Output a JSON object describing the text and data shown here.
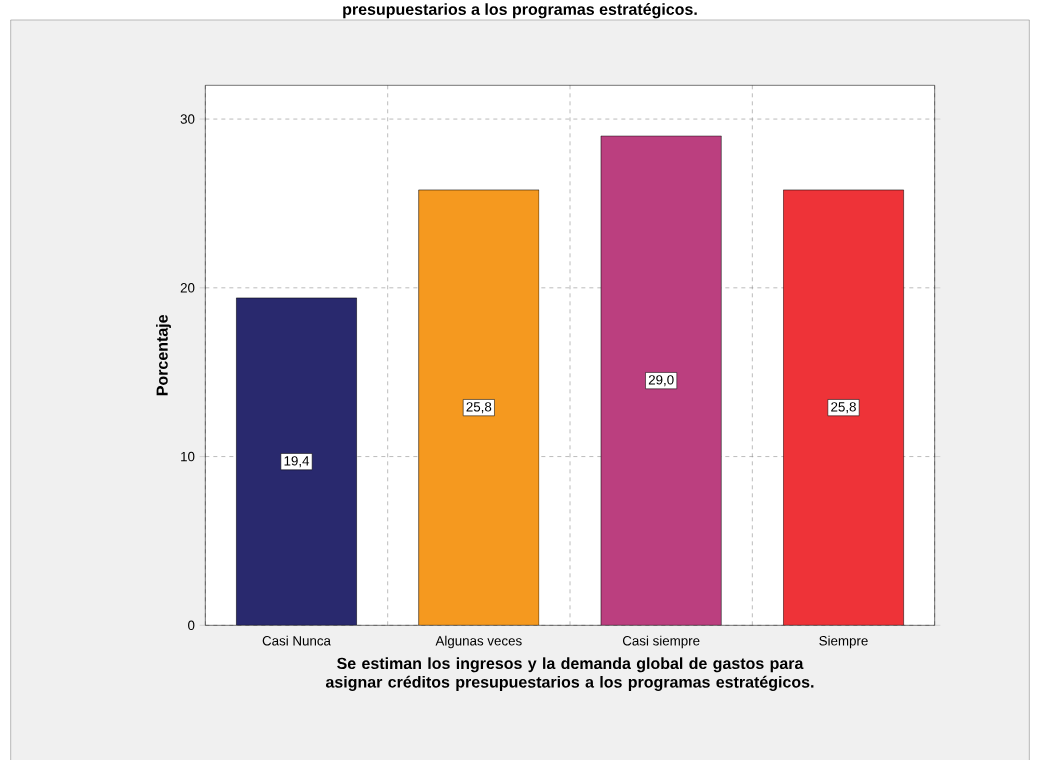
{
  "chart_data": {
    "type": "bar",
    "title": "presupuestarios a los programas estratégicos.",
    "xlabel": "Se estiman los ingresos y la demanda global de gastos para asignar créditos presupuestarios a los programas estratégicos.",
    "ylabel": "Porcentaje",
    "categories": [
      "Casi Nunca",
      "Algunas veces",
      "Casi siempre",
      "Siempre"
    ],
    "values": [
      19.4,
      25.8,
      29.0,
      25.8
    ],
    "value_labels": [
      "19,4",
      "25,8",
      "29,0",
      "25,8"
    ],
    "colors": [
      "#29296e",
      "#f5991f",
      "#bb3f7f",
      "#ee3338"
    ],
    "ylim": [
      0,
      32
    ],
    "yticks": [
      0,
      10,
      20,
      30
    ],
    "grid": true
  }
}
